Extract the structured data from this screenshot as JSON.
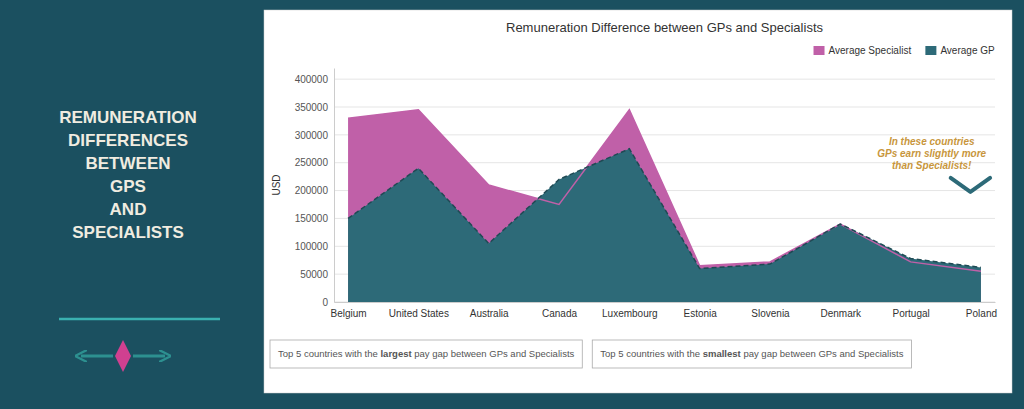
{
  "chart_data": {
    "type": "area",
    "title": "Remuneration Difference between GPs and Specialists",
    "subtitle": "REMUNERATION\nDIFFERENCES\nBETWEEN\nGPS\nAND\nSPECIALISTS",
    "ylabel": "USD",
    "categories": [
      "Belgium",
      "United States",
      "Australia",
      "Canada",
      "Luxembourg",
      "Estonia",
      "Slovenia",
      "Denmark",
      "Portugal",
      "Poland"
    ],
    "series": [
      {
        "name": "Average Specialist",
        "color": "#c060a8",
        "line_style": "solid",
        "values": [
          330000,
          345000,
          210000,
          175000,
          345000,
          65000,
          72000,
          140000,
          72000,
          55000
        ]
      },
      {
        "name": "Average GP",
        "color": "#2d6a78",
        "line_style": "dashed",
        "values": [
          150000,
          240000,
          105000,
          220000,
          275000,
          60000,
          68000,
          140000,
          78000,
          62000
        ]
      }
    ],
    "ylim": [
      0,
      420000
    ],
    "yticks": [
      0,
      50000,
      100000,
      150000,
      200000,
      250000,
      300000,
      350000,
      400000
    ],
    "grid": true,
    "legend": "upper right",
    "annotations": [
      "In these countries\nGPs earn slightly more\nthan Specialists!",
      [
        "Top 5 countries with the ",
        "largest",
        " pay gap between GPs and Specialists"
      ],
      [
        "Top 5 countries with the ",
        "smallest",
        " pay gap between GPs and Specialists"
      ]
    ]
  }
}
